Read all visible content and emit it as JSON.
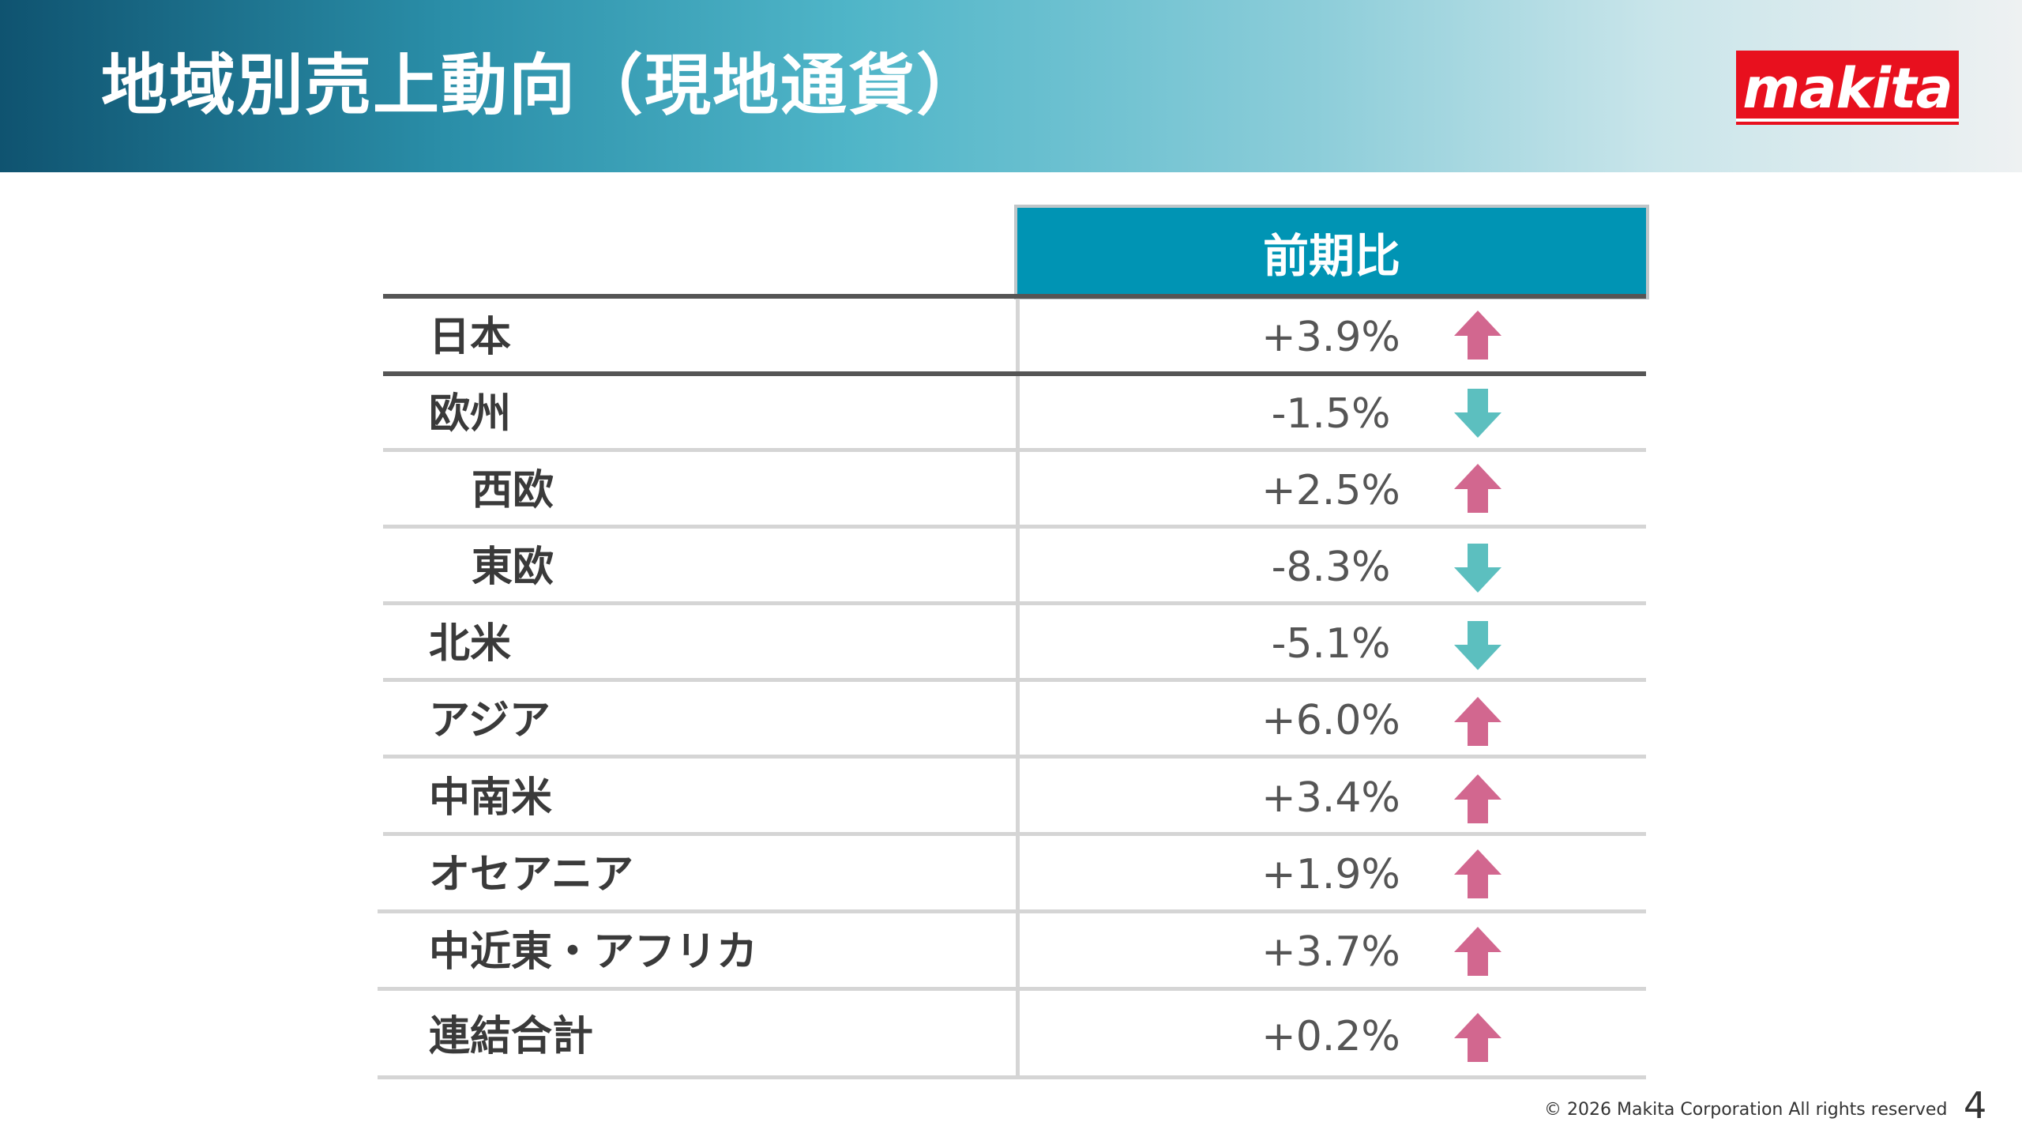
{
  "title": "地域別売上動向（現地通貨）",
  "logo_text": "makita",
  "table": {
    "column_header": "前期比",
    "rows": [
      {
        "label": "日本",
        "value": "+3.9%",
        "trend": "up"
      },
      {
        "label": "欧州",
        "value": "-1.5%",
        "trend": "down"
      },
      {
        "label": "西欧",
        "value": "+2.5%",
        "trend": "up"
      },
      {
        "label": "東欧",
        "value": "-8.3%",
        "trend": "down"
      },
      {
        "label": "北米",
        "value": "-5.1%",
        "trend": "down"
      },
      {
        "label": "アジア",
        "value": "+6.0%",
        "trend": "up"
      },
      {
        "label": "中南米",
        "value": "+3.4%",
        "trend": "up"
      },
      {
        "label": "オセアニア",
        "value": "+1.9%",
        "trend": "up"
      },
      {
        "label": "中近東・アフリカ",
        "value": "+3.7%",
        "trend": "up"
      },
      {
        "label": "連結合計",
        "value": "+0.2%",
        "trend": "up"
      }
    ]
  },
  "colors": {
    "up": "#d2678f",
    "down": "#5cbfbf",
    "accent": "#0094b4",
    "logo": "#e8101e"
  },
  "footer": {
    "copyright": "© 2026  Makita Corporation All rights reserved",
    "page_number": "4"
  }
}
